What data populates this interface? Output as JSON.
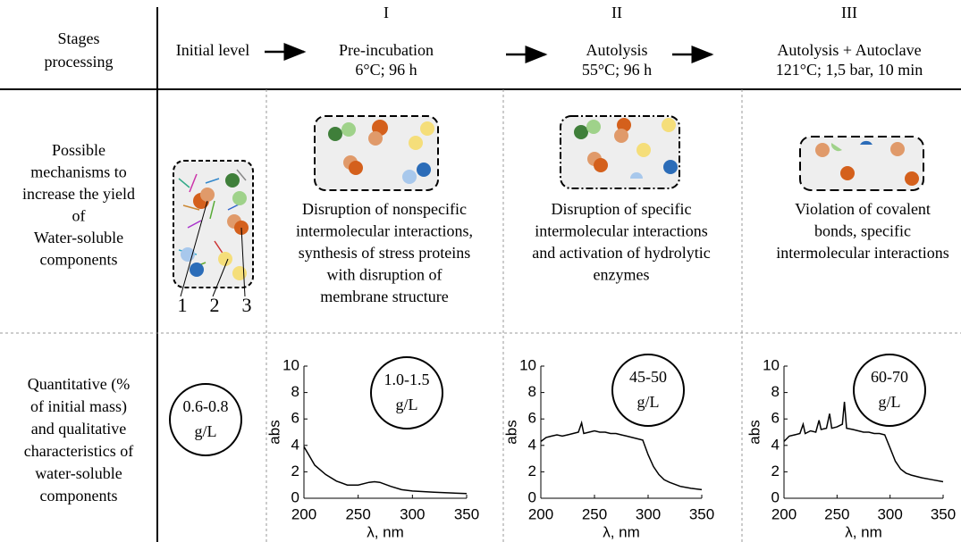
{
  "header": {
    "row_label": [
      "Stages",
      "processing"
    ],
    "initial": "Initial level",
    "stages": [
      {
        "numeral": "I",
        "name": "Pre-incubation",
        "conditions": "6°C; 96 h"
      },
      {
        "numeral": "II",
        "name": "Autolysis",
        "conditions": "55°C; 96 h"
      },
      {
        "numeral": "III",
        "name": "Autolysis + Autoclave",
        "conditions": "121°C; 1,5 bar, 10 min"
      }
    ]
  },
  "mechanisms": {
    "row_label": [
      "Possible",
      "mechanisms to",
      "increase the yield",
      "of",
      "Water-soluble",
      "components"
    ],
    "legend_numbers": [
      "1",
      "2",
      "3"
    ],
    "descriptions": [
      [
        "Disruption of nonspecific",
        "intermolecular interactions,",
        "synthesis of stress proteins",
        "with disruption of",
        "membrane structure"
      ],
      [
        "Disruption of specific",
        "intermolecular interactions",
        "and activation of hydrolytic",
        "enzymes"
      ],
      [
        "Violation of covalent",
        "bonds, specific",
        "intermolecular interactions"
      ]
    ]
  },
  "quantitative": {
    "row_label": [
      "Quantitative (%",
      "of initial mass)",
      "and qualitative",
      "characteristics of",
      "water-soluble",
      "components"
    ],
    "yields": [
      [
        "0.6-0.8",
        "g/L"
      ],
      [
        "1.0-1.5",
        "g/L"
      ],
      [
        "45-50",
        "g/L"
      ],
      [
        "60-70",
        "g/L"
      ]
    ],
    "charts": [
      {
        "type": "line",
        "xlabel": "λ, nm",
        "ylabel": "abs",
        "xlim": [
          200,
          350
        ],
        "ylim": [
          0,
          10
        ],
        "xticks": [
          200,
          250,
          300,
          350
        ],
        "yticks": [
          0,
          2,
          4,
          6,
          8,
          10
        ],
        "x": [
          200,
          205,
          210,
          220,
          230,
          240,
          250,
          260,
          265,
          270,
          280,
          290,
          300,
          320,
          350
        ],
        "series": [
          {
            "color": "#000000",
            "values": [
              3.9,
              3.2,
              2.5,
              1.8,
              1.3,
              1.0,
              1.0,
              1.2,
              1.25,
              1.2,
              0.9,
              0.65,
              0.55,
              0.45,
              0.35
            ]
          }
        ]
      },
      {
        "type": "line",
        "xlabel": "λ, nm",
        "ylabel": "abs",
        "xlim": [
          200,
          350
        ],
        "ylim": [
          0,
          10
        ],
        "xticks": [
          200,
          250,
          300,
          350
        ],
        "yticks": [
          0,
          2,
          4,
          6,
          8,
          10
        ],
        "x": [
          200,
          205,
          210,
          215,
          220,
          225,
          230,
          235,
          238,
          240,
          245,
          250,
          255,
          260,
          265,
          270,
          275,
          280,
          285,
          290,
          295,
          300,
          305,
          310,
          315,
          320,
          330,
          340,
          350
        ],
        "series": [
          {
            "color": "#000000",
            "values": [
              4.3,
              4.6,
              4.7,
              4.8,
              4.7,
              4.8,
              4.9,
              5.0,
              5.7,
              4.9,
              5.0,
              5.1,
              5.0,
              5.0,
              4.9,
              4.9,
              4.8,
              4.7,
              4.6,
              4.5,
              4.4,
              3.3,
              2.4,
              1.8,
              1.4,
              1.2,
              0.9,
              0.75,
              0.65
            ]
          }
        ]
      },
      {
        "type": "line",
        "xlabel": "λ, nm",
        "ylabel": "abs",
        "xlim": [
          200,
          350
        ],
        "ylim": [
          0,
          10
        ],
        "xticks": [
          200,
          250,
          300,
          350
        ],
        "yticks": [
          0,
          2,
          4,
          6,
          8,
          10
        ],
        "x": [
          200,
          205,
          210,
          215,
          218,
          220,
          225,
          230,
          233,
          235,
          240,
          243,
          245,
          250,
          255,
          257,
          259,
          265,
          270,
          275,
          280,
          285,
          290,
          295,
          300,
          305,
          310,
          315,
          320,
          330,
          340,
          350
        ],
        "series": [
          {
            "color": "#000000",
            "values": [
              4.3,
              4.7,
              4.8,
              4.9,
              5.6,
              4.9,
              5.1,
              5.0,
              5.9,
              5.2,
              5.3,
              6.4,
              5.3,
              5.4,
              5.6,
              7.3,
              5.3,
              5.2,
              5.1,
              5.0,
              5.0,
              4.9,
              4.9,
              4.8,
              3.8,
              2.8,
              2.2,
              1.9,
              1.75,
              1.55,
              1.4,
              1.25
            ]
          }
        ]
      }
    ]
  }
}
